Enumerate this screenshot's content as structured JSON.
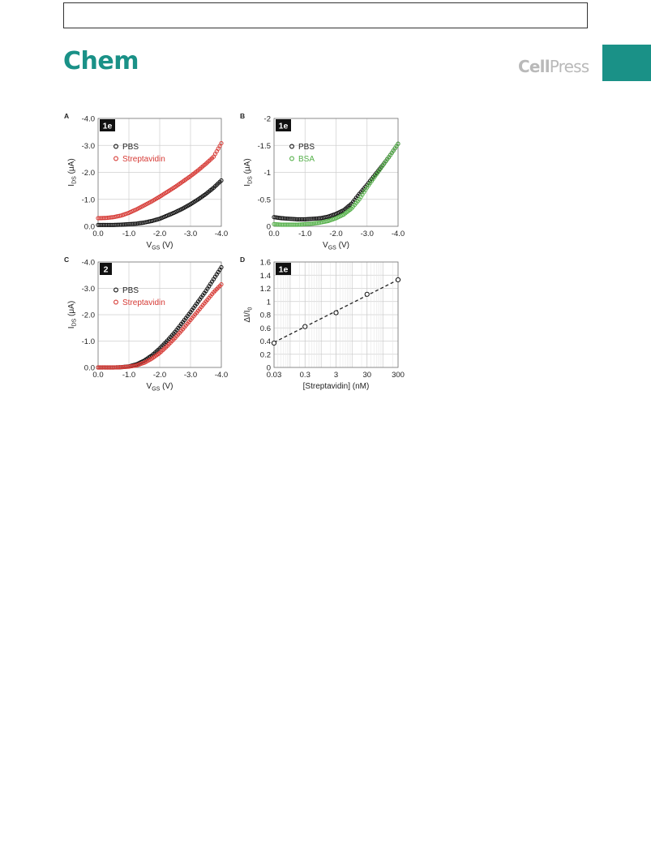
{
  "page": {
    "journal": "Chem",
    "publisher_bold": "Cell",
    "publisher_light": "Press",
    "colors": {
      "journal": "#1a9187",
      "publisher": "#b9b9b9",
      "series_black": "#111111",
      "series_red": "#d63a35",
      "series_green": "#55b04a"
    }
  },
  "chart_data": [
    {
      "panel": "A",
      "badge": "1e",
      "type": "scatter",
      "ylabel": "I",
      "ylabel_sub": "DS",
      "ylabel_unit": " (μA)",
      "xlabel": "V",
      "xlabel_sub": "GS",
      "xlabel_unit": " (V)",
      "xlim": [
        0,
        -4
      ],
      "ylim": [
        0,
        -4
      ],
      "xticks": [
        0,
        -1,
        -2,
        -3,
        -4
      ],
      "xtick_labels": [
        "0.0",
        "-1.0",
        "-2.0",
        "-3.0",
        "-4.0"
      ],
      "yticks": [
        0,
        -1,
        -2,
        -3,
        -4
      ],
      "ytick_labels": [
        "0.0",
        "-1.0",
        "-2.0",
        "-3.0",
        "-4.0"
      ],
      "grid": true,
      "legend_position": "top-left",
      "series": [
        {
          "name": "PBS",
          "color": "#111111",
          "x": [
            0,
            -0.25,
            -0.5,
            -0.75,
            -1,
            -1.25,
            -1.5,
            -1.75,
            -2,
            -2.25,
            -2.5,
            -2.75,
            -3,
            -3.25,
            -3.5,
            -3.75,
            -4
          ],
          "y": [
            -0.05,
            -0.05,
            -0.05,
            -0.06,
            -0.08,
            -0.1,
            -0.14,
            -0.2,
            -0.28,
            -0.4,
            -0.52,
            -0.66,
            -0.82,
            -1.0,
            -1.2,
            -1.43,
            -1.7
          ]
        },
        {
          "name": "Streptavidin",
          "color": "#d63a35",
          "x": [
            0,
            -0.25,
            -0.5,
            -0.75,
            -1,
            -1.25,
            -1.5,
            -1.75,
            -2,
            -2.25,
            -2.5,
            -2.75,
            -3,
            -3.25,
            -3.5,
            -3.75,
            -4
          ],
          "y": [
            -0.3,
            -0.31,
            -0.34,
            -0.4,
            -0.5,
            -0.63,
            -0.78,
            -0.93,
            -1.1,
            -1.28,
            -1.46,
            -1.66,
            -1.86,
            -2.08,
            -2.32,
            -2.58,
            -3.08
          ]
        }
      ]
    },
    {
      "panel": "B",
      "badge": "1e",
      "type": "scatter",
      "ylabel": "I",
      "ylabel_sub": "DS",
      "ylabel_unit": " (μA)",
      "xlabel": "V",
      "xlabel_sub": "GS",
      "xlabel_unit": " (V)",
      "xlim": [
        0,
        -4
      ],
      "ylim": [
        0,
        -2
      ],
      "xticks": [
        0,
        -1,
        -2,
        -3,
        -4
      ],
      "xtick_labels": [
        "0.0",
        "-1.0",
        "-2.0",
        "-3.0",
        "-4.0"
      ],
      "yticks": [
        0,
        -0.5,
        -1,
        -1.5,
        -2
      ],
      "ytick_labels": [
        "0",
        "-0.5",
        "-1",
        "-1.5",
        "-2"
      ],
      "grid": true,
      "legend_position": "top-left",
      "series": [
        {
          "name": "PBS",
          "color": "#111111",
          "x": [
            0,
            -0.25,
            -0.5,
            -0.75,
            -1,
            -1.25,
            -1.5,
            -1.75,
            -2,
            -2.25,
            -2.5,
            -2.75,
            -3,
            -3.25,
            -3.5,
            -3.75,
            -4
          ],
          "y": [
            -0.17,
            -0.15,
            -0.14,
            -0.13,
            -0.13,
            -0.14,
            -0.15,
            -0.18,
            -0.23,
            -0.3,
            -0.42,
            -0.6,
            -0.77,
            -0.95,
            -1.13,
            -1.32,
            -1.53
          ]
        },
        {
          "name": "BSA",
          "color": "#55b04a",
          "x": [
            0,
            -0.25,
            -0.5,
            -0.75,
            -1,
            -1.25,
            -1.5,
            -1.75,
            -2,
            -2.25,
            -2.5,
            -2.75,
            -3,
            -3.25,
            -3.5,
            -3.75,
            -4
          ],
          "y": [
            -0.04,
            -0.03,
            -0.03,
            -0.03,
            -0.04,
            -0.05,
            -0.07,
            -0.1,
            -0.15,
            -0.22,
            -0.33,
            -0.5,
            -0.72,
            -0.92,
            -1.12,
            -1.32,
            -1.53
          ]
        }
      ]
    },
    {
      "panel": "C",
      "badge": "2",
      "type": "scatter",
      "ylabel": "I",
      "ylabel_sub": "DS",
      "ylabel_unit": " (μA)",
      "xlabel": "V",
      "xlabel_sub": "GS",
      "xlabel_unit": " (V)",
      "xlim": [
        0,
        -4
      ],
      "ylim": [
        0,
        -4
      ],
      "xticks": [
        0,
        -1,
        -2,
        -3,
        -4
      ],
      "xtick_labels": [
        "0.0",
        "-1.0",
        "-2.0",
        "-3.0",
        "-4.0"
      ],
      "yticks": [
        0,
        -1,
        -2,
        -3,
        -4
      ],
      "ytick_labels": [
        "0.0",
        "-1.0",
        "-2.0",
        "-3.0",
        "-4.0"
      ],
      "grid": true,
      "legend_position": "top-left",
      "series": [
        {
          "name": "PBS",
          "color": "#111111",
          "x": [
            0,
            -0.25,
            -0.5,
            -0.75,
            -1,
            -1.25,
            -1.5,
            -1.75,
            -2,
            -2.25,
            -2.5,
            -2.75,
            -3,
            -3.25,
            -3.5,
            -3.75,
            -4
          ],
          "y": [
            0,
            0,
            0,
            -0.01,
            -0.04,
            -0.12,
            -0.26,
            -0.46,
            -0.72,
            -1.02,
            -1.35,
            -1.72,
            -2.1,
            -2.5,
            -2.9,
            -3.35,
            -3.8
          ]
        },
        {
          "name": "Streptavidin",
          "color": "#d63a35",
          "x": [
            0,
            -0.25,
            -0.5,
            -0.75,
            -1,
            -1.25,
            -1.5,
            -1.75,
            -2,
            -2.25,
            -2.5,
            -2.75,
            -3,
            -3.25,
            -3.5,
            -3.75,
            -4
          ],
          "y": [
            0,
            0,
            0,
            -0.01,
            -0.03,
            -0.08,
            -0.18,
            -0.34,
            -0.55,
            -0.82,
            -1.12,
            -1.45,
            -1.8,
            -2.15,
            -2.5,
            -2.85,
            -3.15
          ]
        }
      ]
    },
    {
      "panel": "D",
      "badge": "1e",
      "type": "scatter",
      "ylabel": "ΔI/I",
      "ylabel_sub": "0",
      "ylabel_unit": "",
      "xlabel": "[Streptavidin]",
      "xlabel_sub": "",
      "xlabel_unit": " (nM)",
      "xscale": "log",
      "xlim": [
        0.03,
        300
      ],
      "ylim": [
        0,
        1.6
      ],
      "xticks": [
        0.03,
        0.3,
        3,
        30,
        300
      ],
      "xtick_labels": [
        "0.03",
        "0.3",
        "3",
        "30",
        "300"
      ],
      "yticks": [
        0,
        0.2,
        0.4,
        0.6,
        0.8,
        1,
        1.2,
        1.4,
        1.6
      ],
      "ytick_labels": [
        "0",
        "0.2",
        "0.4",
        "0.6",
        "0.8",
        "1",
        "1.2",
        "1.4",
        "1.6"
      ],
      "grid": true,
      "legend_position": "none",
      "series": [
        {
          "name": "",
          "color": "#111111",
          "x": [
            0.03,
            0.3,
            3,
            30,
            300
          ],
          "y": [
            0.37,
            0.62,
            0.83,
            1.11,
            1.33
          ],
          "error": [
            0.03,
            0.02,
            0.02,
            0.02,
            0.03
          ]
        }
      ],
      "fit": {
        "x": [
          0.03,
          300
        ],
        "y": [
          0.38,
          1.33
        ],
        "style": "dashed"
      }
    }
  ]
}
